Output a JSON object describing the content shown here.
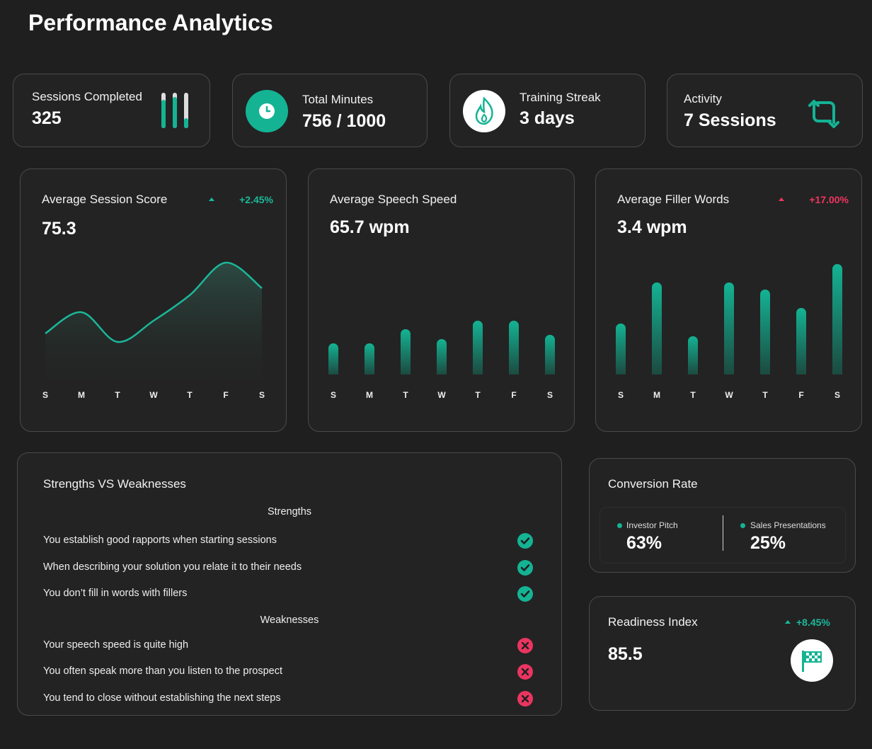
{
  "header": {
    "title": "Performance Analytics"
  },
  "stats": [
    {
      "label": "Sessions Completed",
      "value": "325"
    },
    {
      "label": "Total Minutes",
      "value": "756 / 1000"
    },
    {
      "label": "Training Streak",
      "value": "3 days"
    },
    {
      "label": "Activity",
      "value": "7 Sessions"
    }
  ],
  "chart_data": [
    {
      "type": "line",
      "title": "Average Session Score",
      "subtitle": "75.3",
      "change": "+2.45%",
      "change_color": "#1bb89a",
      "color": "#1bb89a",
      "categories": [
        "S",
        "M",
        "T",
        "W",
        "T",
        "F",
        "S"
      ],
      "values": [
        35,
        50,
        29,
        44,
        62,
        85,
        67
      ],
      "ylim": [
        0,
        100
      ]
    },
    {
      "type": "bar",
      "title": "Average Speech Speed",
      "subtitle": "65.7 wpm",
      "color": "#14b394",
      "categories": [
        "S",
        "M",
        "T",
        "W",
        "T",
        "F",
        "S"
      ],
      "values": [
        22,
        22,
        32,
        25,
        38,
        38,
        28
      ],
      "ylim": [
        0,
        100
      ]
    },
    {
      "type": "bar",
      "title": "Average Filler Words",
      "subtitle": "3.4 wpm",
      "change": "+17.00%",
      "change_color": "#ee3560",
      "color": "#14b394",
      "categories": [
        "S",
        "M",
        "T",
        "W",
        "T",
        "F",
        "S"
      ],
      "values": [
        36,
        65,
        27,
        65,
        60,
        47,
        78
      ],
      "ylim": [
        0,
        100
      ]
    }
  ],
  "strengths_weaknesses": {
    "title": "Strengths VS Weaknesses",
    "strengths_heading": "Strengths",
    "strengths": [
      "You establish good rapports when starting sessions",
      "When describing your solution you relate it to their needs",
      "You don’t fill in words with fillers"
    ],
    "weaknesses_heading": "Weaknesses",
    "weaknesses": [
      "Your speech speed is quite high",
      "You often speak more than you listen to the prospect",
      "You tend to close without establishing the next steps"
    ]
  },
  "conversion": {
    "title": "Conversion Rate",
    "items": [
      {
        "name": "Investor Pitch",
        "value": "63%"
      },
      {
        "name": "Sales Presentations",
        "value": "25%"
      }
    ]
  },
  "readiness": {
    "title": "Readiness Index",
    "value": "85.5",
    "change": "+8.45%"
  }
}
